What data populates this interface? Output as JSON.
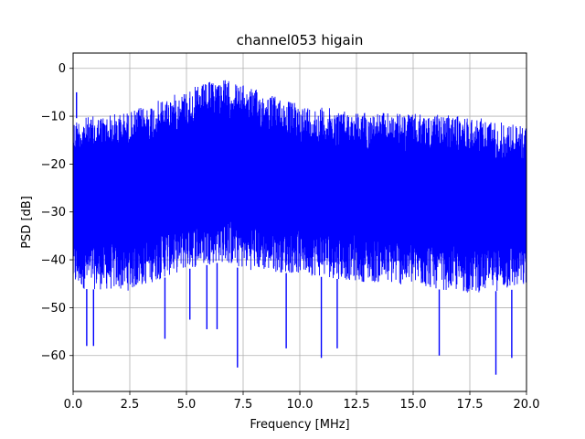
{
  "chart_data": {
    "type": "line",
    "title": "channel053 higain",
    "xlabel": "Frequency [MHz]",
    "ylabel": "PSD [dB]",
    "xlim": [
      0,
      20
    ],
    "ylim": [
      -67.5,
      3.2
    ],
    "x_ticks": [
      0.0,
      2.5,
      5.0,
      7.5,
      10.0,
      12.5,
      15.0,
      17.5,
      20.0
    ],
    "x_tick_labels": [
      "0.0",
      "2.5",
      "5.0",
      "7.5",
      "10.0",
      "12.5",
      "15.0",
      "17.5",
      "20.0"
    ],
    "y_ticks": [
      0,
      -10,
      -20,
      -30,
      -40,
      -50,
      -60
    ],
    "y_tick_labels": [
      "0",
      "−10",
      "−20",
      "−30",
      "−40",
      "−50",
      "−60"
    ],
    "grid": true,
    "line_color": "#0000ff",
    "series": [
      {
        "x": [
          0,
          2.5,
          5.0,
          6.5,
          7.5,
          10.0,
          12.5,
          15.0,
          17.5,
          20.0
        ],
        "upper_envelope": [
          -10.5,
          -9.0,
          -4.5,
          -2.0,
          -3.5,
          -7.5,
          -9.0,
          -9.5,
          -10.0,
          -12.0
        ],
        "lower_envelope": [
          -46.0,
          -46.5,
          -42.0,
          -40.5,
          -42.0,
          -43.0,
          -44.5,
          -45.5,
          -47.0,
          -46.0
        ],
        "spikes": [
          {
            "x": 0.15,
            "y": -5.0
          },
          {
            "x": 0.6,
            "y": -58.0
          },
          {
            "x": 0.9,
            "y": -58.0
          },
          {
            "x": 4.05,
            "y": -56.5
          },
          {
            "x": 5.15,
            "y": -52.5
          },
          {
            "x": 5.9,
            "y": -54.5
          },
          {
            "x": 6.35,
            "y": -54.5
          },
          {
            "x": 7.25,
            "y": -62.5
          },
          {
            "x": 9.4,
            "y": -58.5
          },
          {
            "x": 10.95,
            "y": -60.5
          },
          {
            "x": 11.65,
            "y": -58.5
          },
          {
            "x": 16.15,
            "y": -60.0
          },
          {
            "x": 18.65,
            "y": -64.0
          },
          {
            "x": 19.35,
            "y": -60.5
          }
        ]
      }
    ]
  }
}
